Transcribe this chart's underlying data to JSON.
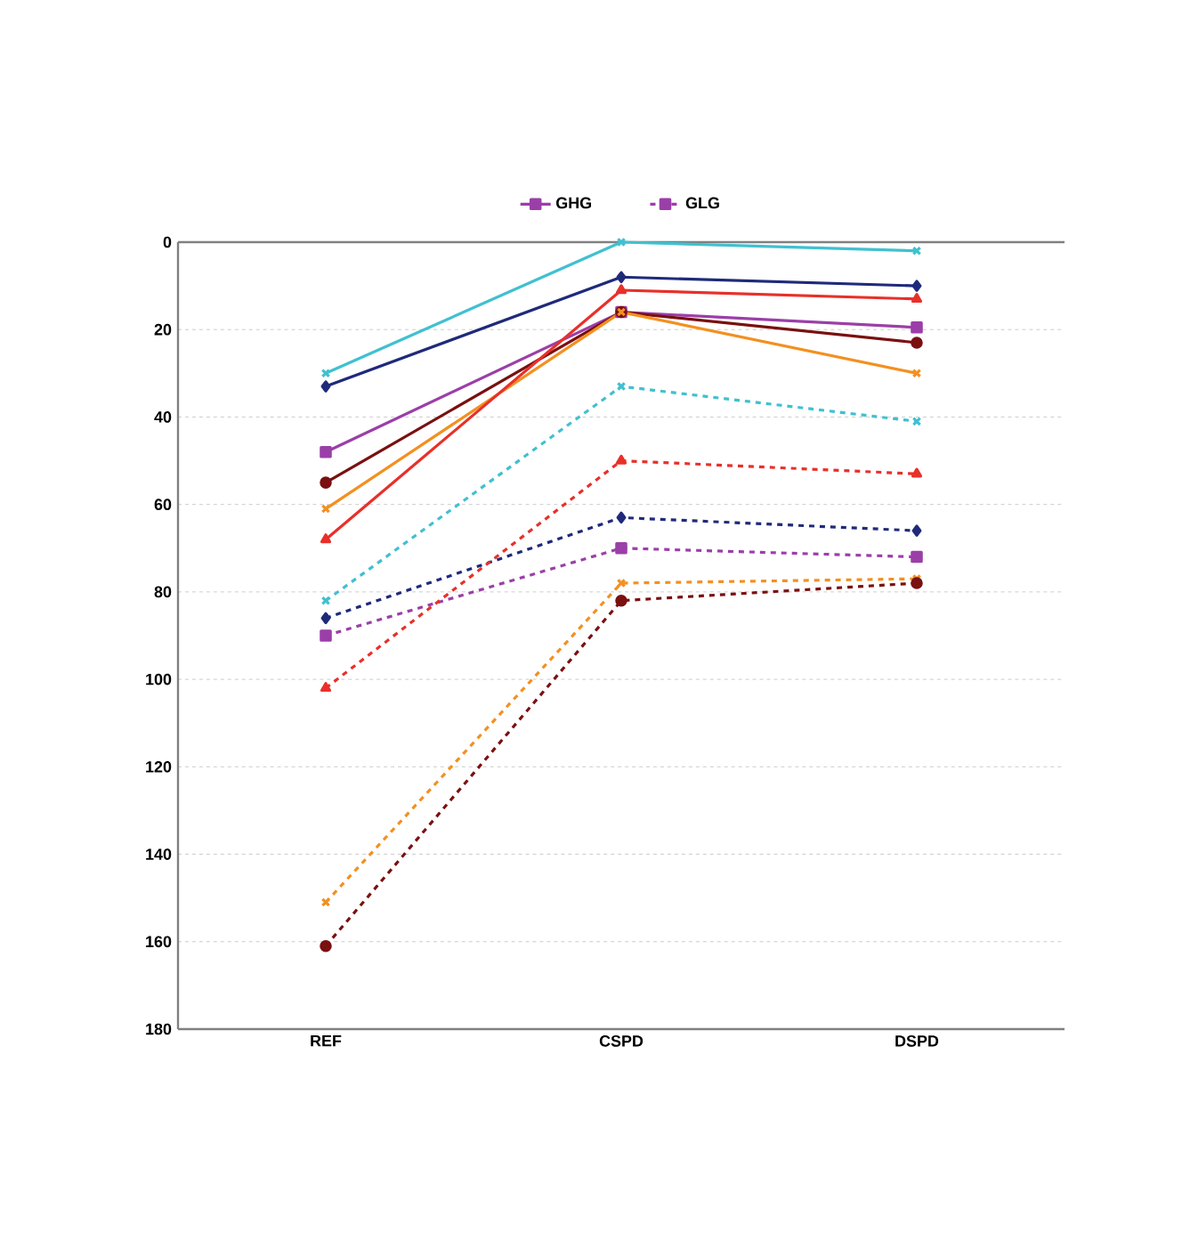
{
  "chart_data": {
    "type": "line",
    "categories": [
      "REF",
      "CSPD",
      "DSPD"
    ],
    "ylim": [
      180,
      0
    ],
    "yticks": [
      0,
      20,
      40,
      60,
      80,
      100,
      120,
      140,
      160,
      180
    ],
    "grid": "y",
    "legend": "top",
    "series": [
      {
        "color": "#40c0d0",
        "marker": "cross",
        "line_style": "solid",
        "values": [
          30,
          0,
          2
        ]
      },
      {
        "color": "#1f2a7a",
        "marker": "diamond",
        "line_style": "solid",
        "values": [
          33,
          8,
          10
        ]
      },
      {
        "name": "GHG",
        "color": "#9b3fa8",
        "marker": "square",
        "line_style": "solid",
        "values": [
          48,
          16,
          19.5
        ]
      },
      {
        "color": "#7a1010",
        "marker": "circle",
        "line_style": "solid",
        "values": [
          55,
          16,
          23
        ]
      },
      {
        "color": "#f39020",
        "marker": "cross",
        "line_style": "solid",
        "values": [
          61,
          16,
          30
        ]
      },
      {
        "color": "#e8302a",
        "marker": "triangle",
        "line_style": "solid",
        "values": [
          68,
          11,
          13
        ]
      },
      {
        "color": "#40c0d0",
        "marker": "cross",
        "line_style": "dashed",
        "values": [
          82,
          33,
          41
        ]
      },
      {
        "color": "#1f2a7a",
        "marker": "diamond",
        "line_style": "dashed",
        "values": [
          86,
          63,
          66
        ]
      },
      {
        "name": "GLG",
        "color": "#9b3fa8",
        "marker": "square",
        "line_style": "dashed",
        "values": [
          90,
          70,
          72
        ]
      },
      {
        "color": "#e8302a",
        "marker": "triangle",
        "line_style": "dashed",
        "values": [
          102,
          50,
          53
        ]
      },
      {
        "color": "#f39020",
        "marker": "cross",
        "line_style": "dashed",
        "values": [
          151,
          78,
          77
        ]
      },
      {
        "color": "#7a1010",
        "marker": "circle",
        "line_style": "dashed",
        "values": [
          161,
          82,
          78
        ]
      }
    ]
  }
}
